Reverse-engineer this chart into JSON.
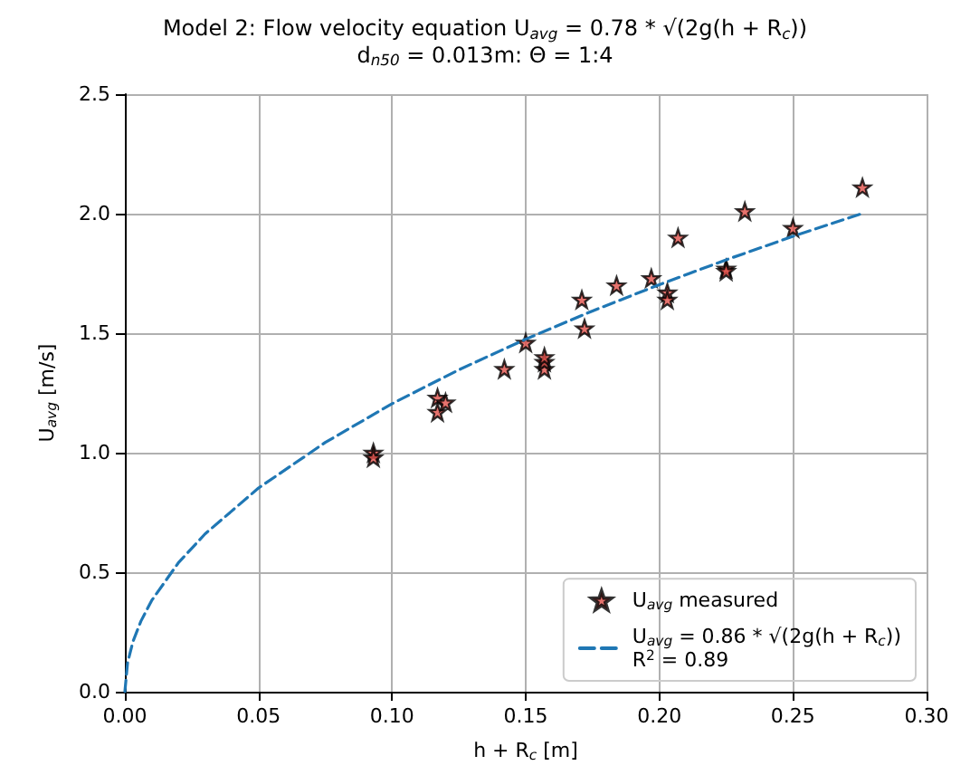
{
  "chart_data": {
    "type": "scatter",
    "title": "Model 2: Flow velocity equation U$_{avg}$ = 0.78 * √(2g(h + R$_{c}$))",
    "subtitle": "d$_{n50}$ = 0.013m: Θ = 1:4",
    "xlabel": "h + R$_{c}$ [m]",
    "ylabel": "U$_{avg}$ [m/s]",
    "xlim": [
      0,
      0.3
    ],
    "xticks": [
      {
        "value": 0,
        "label": "0.00"
      },
      0.05,
      {
        "value": 0.1,
        "label": "0.10"
      },
      0.15,
      {
        "value": 0.2,
        "label": "0.20"
      },
      0.25,
      {
        "value": 0.3,
        "label": "0.30"
      }
    ],
    "ylim": [
      0,
      2.5
    ],
    "yticks": [
      {
        "value": 0,
        "label": "0.0"
      },
      0.5,
      {
        "value": 1,
        "label": "1.0"
      },
      1.5,
      {
        "value": 2,
        "label": "2.0"
      },
      2.5
    ],
    "grid": true,
    "legend": "bottom right",
    "series": [
      {
        "name": "U$_{avg}$ measured",
        "marker": "star",
        "color": "#e0504a",
        "x": [
          0.093,
          0.093,
          0.117,
          0.117,
          0.12,
          0.142,
          0.15,
          0.157,
          0.157,
          0.157,
          0.171,
          0.172,
          0.184,
          0.197,
          0.203,
          0.203,
          0.207,
          0.225,
          0.225,
          0.232,
          0.25,
          0.276
        ],
        "values": [
          1.0,
          0.98,
          1.17,
          1.23,
          1.21,
          1.35,
          1.46,
          1.35,
          1.38,
          1.4,
          1.64,
          1.52,
          1.7,
          1.73,
          1.67,
          1.64,
          1.9,
          1.77,
          1.76,
          2.01,
          1.94,
          2.11
        ]
      },
      {
        "name": "U$_{avg}$ = 0.86 * √(2g(h + R$_{c}$))\nR$^{2}$ = 0.89",
        "type": "line",
        "line_style": "dashed",
        "marker": "none",
        "color": "#1f77b4",
        "x": [
          0,
          0.001,
          0.003,
          0.006,
          0.01,
          0.02,
          0.03,
          0.05,
          0.075,
          0.1,
          0.125,
          0.15,
          0.175,
          0.2,
          0.225,
          0.25,
          0.276
        ],
        "values": [
          0,
          0.12,
          0.209,
          0.295,
          0.381,
          0.539,
          0.66,
          0.852,
          1.043,
          1.205,
          1.347,
          1.475,
          1.593,
          1.703,
          1.807,
          1.905,
          2.001
        ]
      }
    ]
  }
}
